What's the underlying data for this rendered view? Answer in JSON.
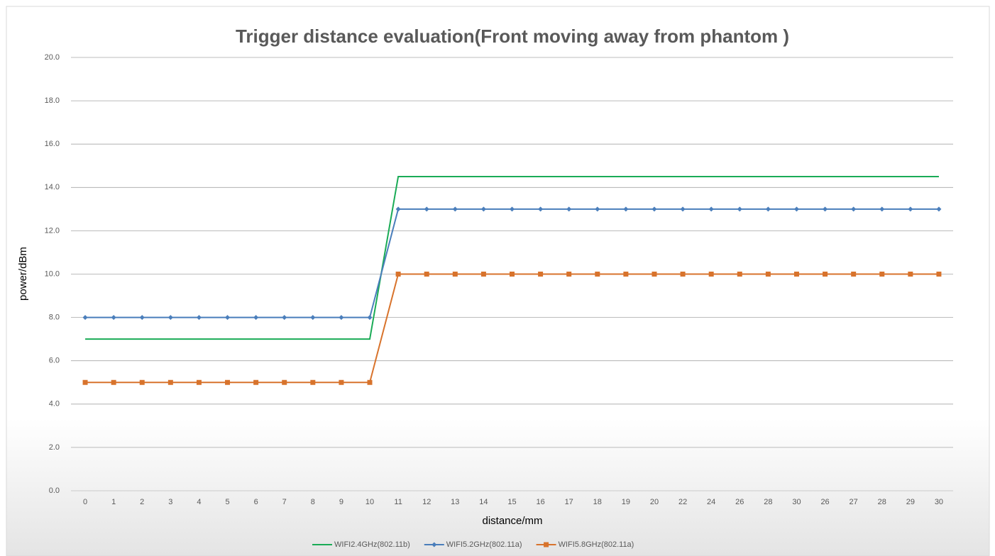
{
  "chart_data": {
    "type": "line",
    "title": "Trigger distance evaluation(Front moving away from phantom )",
    "xlabel": "distance/mm",
    "ylabel": "power/dBm",
    "categories": [
      "0",
      "1",
      "2",
      "3",
      "4",
      "5",
      "6",
      "7",
      "8",
      "9",
      "10",
      "11",
      "12",
      "13",
      "14",
      "15",
      "16",
      "17",
      "18",
      "19",
      "20",
      "22",
      "24",
      "26",
      "28",
      "30",
      "26",
      "27",
      "28",
      "29",
      "30"
    ],
    "series": [
      {
        "name": "WIFI2.4GHz(802.11b)",
        "color": "#1aab56",
        "marker": "none",
        "values": [
          7,
          7,
          7,
          7,
          7,
          7,
          7,
          7,
          7,
          7,
          7,
          14.5,
          14.5,
          14.5,
          14.5,
          14.5,
          14.5,
          14.5,
          14.5,
          14.5,
          14.5,
          14.5,
          14.5,
          14.5,
          14.5,
          14.5,
          14.5,
          14.5,
          14.5,
          14.5,
          14.5
        ]
      },
      {
        "name": "WIFI5.2GHz(802.11a)",
        "color": "#4a7ebb",
        "marker": "diamond",
        "values": [
          8,
          8,
          8,
          8,
          8,
          8,
          8,
          8,
          8,
          8,
          8,
          13,
          13,
          13,
          13,
          13,
          13,
          13,
          13,
          13,
          13,
          13,
          13,
          13,
          13,
          13,
          13,
          13,
          13,
          13,
          13
        ]
      },
      {
        "name": "WIFI5.8GHz(802.11a)",
        "color": "#d8732c",
        "marker": "square",
        "values": [
          5,
          5,
          5,
          5,
          5,
          5,
          5,
          5,
          5,
          5,
          5,
          10,
          10,
          10,
          10,
          10,
          10,
          10,
          10,
          10,
          10,
          10,
          10,
          10,
          10,
          10,
          10,
          10,
          10,
          10,
          10
        ]
      }
    ],
    "ylim": [
      0,
      20
    ],
    "yticks": [
      {
        "value": 0,
        "label": "0.0"
      },
      {
        "value": 2,
        "label": "2.0"
      },
      {
        "value": 4,
        "label": "4.0"
      },
      {
        "value": 6,
        "label": "6.0"
      },
      {
        "value": 8,
        "label": "8.0"
      },
      {
        "value": 10,
        "label": "10.0"
      },
      {
        "value": 12,
        "label": "12.0"
      },
      {
        "value": 14,
        "label": "14.0"
      },
      {
        "value": 16,
        "label": "16.0"
      },
      {
        "value": 18,
        "label": "18.0"
      },
      {
        "value": 20,
        "label": "20.0"
      }
    ],
    "grid": true,
    "legend": "bottom"
  }
}
